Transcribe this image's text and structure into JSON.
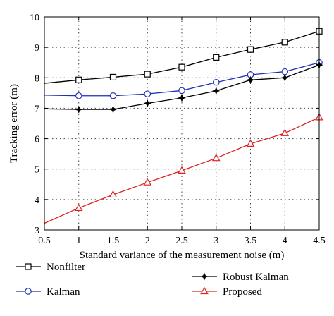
{
  "chart_data": {
    "type": "line",
    "xlabel": "Standard variance of the measurement noise (m)",
    "ylabel": "Tracking error (m)",
    "xlim": [
      0.5,
      4.5
    ],
    "ylim": [
      3,
      10
    ],
    "x_ticks": [
      0.5,
      1,
      1.5,
      2,
      2.5,
      3,
      3.5,
      4,
      4.5
    ],
    "y_ticks": [
      3,
      4,
      5,
      6,
      7,
      8,
      9,
      10
    ],
    "x_tick_labels": [
      "0.5",
      "1",
      "1.5",
      "2",
      "2.5",
      "3",
      "3.5",
      "4",
      "4.5"
    ],
    "y_tick_labels": [
      "3",
      "4",
      "5",
      "6",
      "7",
      "8",
      "9",
      "10"
    ],
    "grid": true,
    "legend_position": "bottom",
    "x": [
      0.5,
      1,
      1.5,
      2,
      2.5,
      3,
      3.5,
      4,
      4.5
    ],
    "series": [
      {
        "name": "Nonfilter",
        "color": "#000000",
        "marker": "square",
        "values": [
          7.82,
          7.93,
          8.02,
          8.12,
          8.35,
          8.67,
          8.93,
          9.17,
          9.53
        ]
      },
      {
        "name": "Kalman",
        "color": "#1f2fb4",
        "marker": "circle",
        "values": [
          7.43,
          7.41,
          7.41,
          7.47,
          7.58,
          7.85,
          8.1,
          8.2,
          8.5
        ]
      },
      {
        "name": "Robust Kalman",
        "color": "#000000",
        "marker": "star",
        "values": [
          6.98,
          6.96,
          6.96,
          7.16,
          7.34,
          7.57,
          7.93,
          8.0,
          8.42
        ]
      },
      {
        "name": "Proposed",
        "color": "#e02020",
        "marker": "triangle",
        "values": [
          3.22,
          3.72,
          4.16,
          4.56,
          4.95,
          5.36,
          5.83,
          6.18,
          6.7
        ]
      }
    ]
  }
}
